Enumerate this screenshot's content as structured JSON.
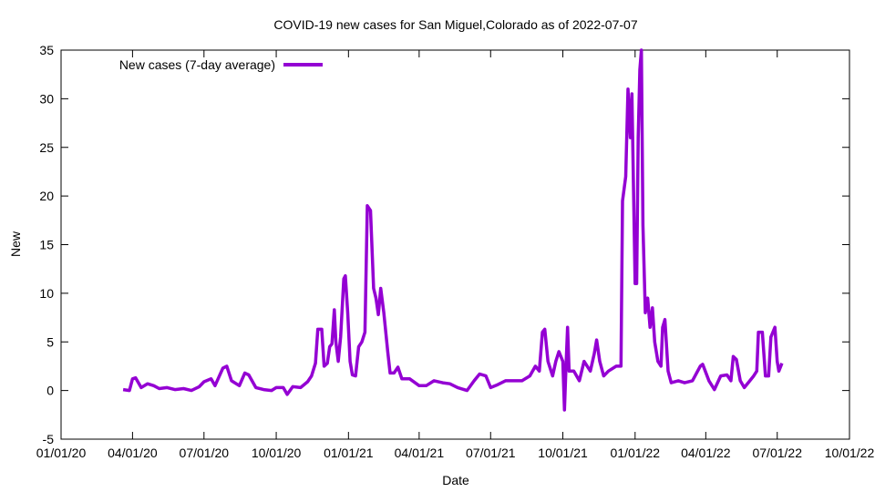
{
  "chart_data": {
    "type": "line",
    "title": "COVID-19 new cases for San Miguel,Colorado as of 2022-07-07",
    "xlabel": "Date",
    "ylabel": "New",
    "xlim": [
      "2020-01-01",
      "2022-10-01"
    ],
    "ylim": [
      -5,
      35
    ],
    "grid": false,
    "legend_position": "top-left",
    "line_color": "#9400d3",
    "x_ticks": [
      {
        "date": "2020-01-01",
        "label": "01/01/20"
      },
      {
        "date": "2020-04-01",
        "label": "04/01/20"
      },
      {
        "date": "2020-07-01",
        "label": "07/01/20"
      },
      {
        "date": "2020-10-01",
        "label": "10/01/20"
      },
      {
        "date": "2021-01-01",
        "label": "01/01/21"
      },
      {
        "date": "2021-04-01",
        "label": "04/01/21"
      },
      {
        "date": "2021-07-01",
        "label": "07/01/21"
      },
      {
        "date": "2021-10-01",
        "label": "10/01/21"
      },
      {
        "date": "2022-01-01",
        "label": "01/01/22"
      },
      {
        "date": "2022-04-01",
        "label": "04/01/22"
      },
      {
        "date": "2022-07-01",
        "label": "07/01/22"
      },
      {
        "date": "2022-10-01",
        "label": "10/01/22"
      }
    ],
    "y_ticks": [
      {
        "value": -5,
        "label": "-5"
      },
      {
        "value": 0,
        "label": "0"
      },
      {
        "value": 5,
        "label": "5"
      },
      {
        "value": 10,
        "label": "10"
      },
      {
        "value": 15,
        "label": "15"
      },
      {
        "value": 20,
        "label": "20"
      },
      {
        "value": 25,
        "label": "25"
      },
      {
        "value": 30,
        "label": "30"
      },
      {
        "value": 35,
        "label": "35"
      }
    ],
    "series": [
      {
        "name": "New cases (7-day average)",
        "points": [
          [
            "2020-03-20",
            0.1
          ],
          [
            "2020-03-28",
            0
          ],
          [
            "2020-04-01",
            1.2
          ],
          [
            "2020-04-05",
            1.3
          ],
          [
            "2020-04-12",
            0.3
          ],
          [
            "2020-04-20",
            0.7
          ],
          [
            "2020-04-28",
            0.5
          ],
          [
            "2020-05-05",
            0.2
          ],
          [
            "2020-05-15",
            0.3
          ],
          [
            "2020-05-25",
            0.1
          ],
          [
            "2020-06-05",
            0.2
          ],
          [
            "2020-06-15",
            0
          ],
          [
            "2020-06-25",
            0.4
          ],
          [
            "2020-07-01",
            0.9
          ],
          [
            "2020-07-10",
            1.2
          ],
          [
            "2020-07-15",
            0.5
          ],
          [
            "2020-07-25",
            2.3
          ],
          [
            "2020-07-30",
            2.5
          ],
          [
            "2020-08-05",
            1.0
          ],
          [
            "2020-08-15",
            0.5
          ],
          [
            "2020-08-22",
            1.8
          ],
          [
            "2020-08-27",
            1.6
          ],
          [
            "2020-09-05",
            0.3
          ],
          [
            "2020-09-15",
            0.1
          ],
          [
            "2020-09-25",
            0
          ],
          [
            "2020-10-01",
            0.3
          ],
          [
            "2020-10-10",
            0.3
          ],
          [
            "2020-10-15",
            -0.4
          ],
          [
            "2020-10-22",
            0.4
          ],
          [
            "2020-11-01",
            0.3
          ],
          [
            "2020-11-10",
            0.9
          ],
          [
            "2020-11-15",
            1.5
          ],
          [
            "2020-11-20",
            2.8
          ],
          [
            "2020-11-23",
            6.3
          ],
          [
            "2020-11-28",
            6.3
          ],
          [
            "2020-12-01",
            2.5
          ],
          [
            "2020-12-05",
            2.8
          ],
          [
            "2020-12-08",
            4.5
          ],
          [
            "2020-12-11",
            4.8
          ],
          [
            "2020-12-14",
            8.3
          ],
          [
            "2020-12-16",
            5.0
          ],
          [
            "2020-12-19",
            3.0
          ],
          [
            "2020-12-22",
            5.5
          ],
          [
            "2020-12-26",
            11.5
          ],
          [
            "2020-12-28",
            11.8
          ],
          [
            "2020-12-31",
            8.0
          ],
          [
            "2021-01-03",
            3.0
          ],
          [
            "2021-01-06",
            1.6
          ],
          [
            "2021-01-10",
            1.5
          ],
          [
            "2021-01-14",
            4.5
          ],
          [
            "2021-01-18",
            5.0
          ],
          [
            "2021-01-22",
            6.0
          ],
          [
            "2021-01-25",
            19.0
          ],
          [
            "2021-01-29",
            18.5
          ],
          [
            "2021-02-02",
            10.5
          ],
          [
            "2021-02-05",
            9.5
          ],
          [
            "2021-02-08",
            7.8
          ],
          [
            "2021-02-11",
            10.5
          ],
          [
            "2021-02-15",
            8.0
          ],
          [
            "2021-02-20",
            4.0
          ],
          [
            "2021-02-23",
            1.8
          ],
          [
            "2021-02-28",
            1.8
          ],
          [
            "2021-03-05",
            2.4
          ],
          [
            "2021-03-10",
            1.2
          ],
          [
            "2021-03-20",
            1.2
          ],
          [
            "2021-04-01",
            0.5
          ],
          [
            "2021-04-10",
            0.5
          ],
          [
            "2021-04-20",
            1.0
          ],
          [
            "2021-05-01",
            0.8
          ],
          [
            "2021-05-10",
            0.7
          ],
          [
            "2021-05-20",
            0.3
          ],
          [
            "2021-06-01",
            0
          ],
          [
            "2021-06-10",
            1.0
          ],
          [
            "2021-06-17",
            1.7
          ],
          [
            "2021-06-25",
            1.5
          ],
          [
            "2021-07-01",
            0.3
          ],
          [
            "2021-07-10",
            0.6
          ],
          [
            "2021-07-20",
            1.0
          ],
          [
            "2021-08-01",
            1.0
          ],
          [
            "2021-08-10",
            1.0
          ],
          [
            "2021-08-20",
            1.5
          ],
          [
            "2021-08-27",
            2.5
          ],
          [
            "2021-09-01",
            2.0
          ],
          [
            "2021-09-05",
            6.0
          ],
          [
            "2021-09-08",
            6.3
          ],
          [
            "2021-09-12",
            3.0
          ],
          [
            "2021-09-18",
            1.5
          ],
          [
            "2021-09-22",
            3.0
          ],
          [
            "2021-09-26",
            4.0
          ],
          [
            "2021-10-01",
            3.0
          ],
          [
            "2021-10-03",
            -2.0
          ],
          [
            "2021-10-05",
            2.5
          ],
          [
            "2021-10-07",
            6.5
          ],
          [
            "2021-10-09",
            2.0
          ],
          [
            "2021-10-15",
            2.0
          ],
          [
            "2021-10-22",
            1.0
          ],
          [
            "2021-10-28",
            3.0
          ],
          [
            "2021-11-05",
            2.0
          ],
          [
            "2021-11-10",
            3.8
          ],
          [
            "2021-11-13",
            5.2
          ],
          [
            "2021-11-17",
            3.0
          ],
          [
            "2021-11-22",
            1.5
          ],
          [
            "2021-11-28",
            2.0
          ],
          [
            "2021-12-08",
            2.5
          ],
          [
            "2021-12-14",
            2.5
          ],
          [
            "2021-12-16",
            19.5
          ],
          [
            "2021-12-20",
            22
          ],
          [
            "2021-12-23",
            31
          ],
          [
            "2021-12-26",
            26
          ],
          [
            "2021-12-28",
            30.5
          ],
          [
            "2022-01-01",
            11
          ],
          [
            "2022-01-03",
            11
          ],
          [
            "2022-01-05",
            26
          ],
          [
            "2022-01-07",
            33
          ],
          [
            "2022-01-09",
            35
          ],
          [
            "2022-01-11",
            17
          ],
          [
            "2022-01-14",
            8.0
          ],
          [
            "2022-01-17",
            9.5
          ],
          [
            "2022-01-20",
            6.5
          ],
          [
            "2022-01-23",
            8.5
          ],
          [
            "2022-01-26",
            5.0
          ],
          [
            "2022-01-30",
            3.0
          ],
          [
            "2022-02-03",
            2.5
          ],
          [
            "2022-02-05",
            6.5
          ],
          [
            "2022-02-08",
            7.3
          ],
          [
            "2022-02-12",
            2.0
          ],
          [
            "2022-02-16",
            0.8
          ],
          [
            "2022-02-25",
            1.0
          ],
          [
            "2022-03-05",
            0.8
          ],
          [
            "2022-03-15",
            1.0
          ],
          [
            "2022-03-25",
            2.5
          ],
          [
            "2022-03-28",
            2.7
          ],
          [
            "2022-04-05",
            1.0
          ],
          [
            "2022-04-12",
            0.1
          ],
          [
            "2022-04-20",
            1.5
          ],
          [
            "2022-04-28",
            1.6
          ],
          [
            "2022-05-03",
            1.0
          ],
          [
            "2022-05-06",
            3.5
          ],
          [
            "2022-05-10",
            3.2
          ],
          [
            "2022-05-15",
            1.0
          ],
          [
            "2022-05-20",
            0.3
          ],
          [
            "2022-05-25",
            0.8
          ],
          [
            "2022-06-01",
            1.5
          ],
          [
            "2022-06-05",
            2.0
          ],
          [
            "2022-06-07",
            6.0
          ],
          [
            "2022-06-12",
            6.0
          ],
          [
            "2022-06-16",
            1.5
          ],
          [
            "2022-06-20",
            1.5
          ],
          [
            "2022-06-23",
            5.5
          ],
          [
            "2022-06-28",
            6.5
          ],
          [
            "2022-07-01",
            3.0
          ],
          [
            "2022-07-03",
            2.0
          ],
          [
            "2022-07-07",
            2.8
          ]
        ]
      }
    ]
  }
}
